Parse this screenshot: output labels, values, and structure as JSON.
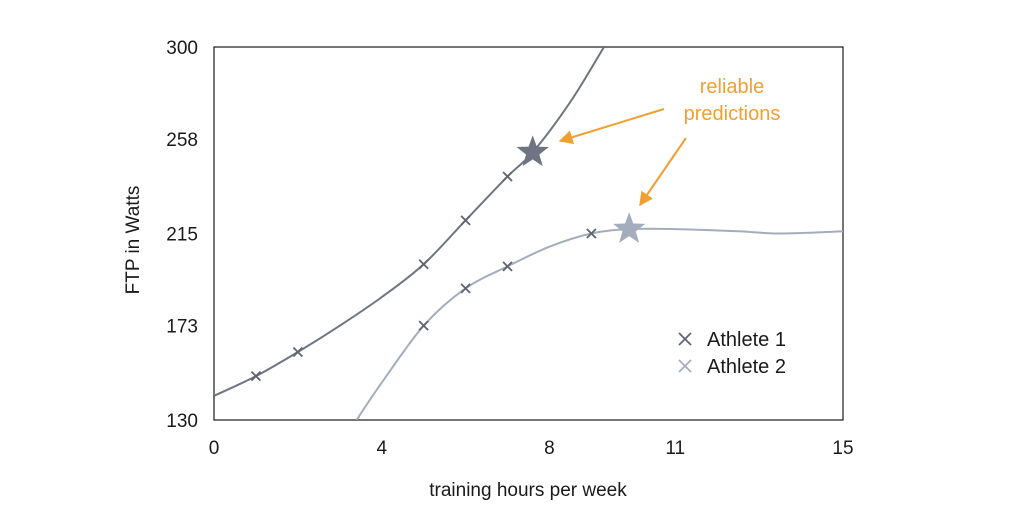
{
  "chart_data": {
    "type": "line",
    "title": "",
    "xlabel": "training hours per week",
    "ylabel": "FTP in Watts",
    "xlim": [
      0,
      15
    ],
    "ylim": [
      130,
      300
    ],
    "x_ticks": [
      0,
      4,
      8,
      11,
      15
    ],
    "x_tick_labels": [
      "0",
      "4",
      "8",
      "11",
      "15"
    ],
    "y_ticks": [
      130,
      173,
      215,
      258,
      300
    ],
    "y_tick_labels": [
      "130",
      "173",
      "215",
      "258",
      "300"
    ],
    "grid": false,
    "legend_position": "lower-right",
    "series": [
      {
        "name": "Athlete 1",
        "color": "#6e7481",
        "marker": "x",
        "points": [
          {
            "x": 1.0,
            "y": 150
          },
          {
            "x": 2.0,
            "y": 161
          },
          {
            "x": 5.0,
            "y": 201
          },
          {
            "x": 6.0,
            "y": 221
          },
          {
            "x": 7.0,
            "y": 241
          }
        ],
        "curve": [
          {
            "x": 0.0,
            "y": 141
          },
          {
            "x": 1.0,
            "y": 150
          },
          {
            "x": 2.0,
            "y": 161
          },
          {
            "x": 3.0,
            "y": 173
          },
          {
            "x": 4.0,
            "y": 186
          },
          {
            "x": 5.0,
            "y": 201
          },
          {
            "x": 6.0,
            "y": 221
          },
          {
            "x": 7.0,
            "y": 241
          },
          {
            "x": 7.6,
            "y": 252
          },
          {
            "x": 8.5,
            "y": 275
          },
          {
            "x": 9.3,
            "y": 300
          }
        ],
        "prediction": {
          "x": 7.6,
          "y": 252
        }
      },
      {
        "name": "Athlete 2",
        "color": "#a4adbb",
        "marker": "x",
        "points": [
          {
            "x": 5.0,
            "y": 173
          },
          {
            "x": 6.0,
            "y": 190
          },
          {
            "x": 7.0,
            "y": 200
          },
          {
            "x": 9.0,
            "y": 215
          }
        ],
        "curve": [
          {
            "x": 3.4,
            "y": 130
          },
          {
            "x": 4.0,
            "y": 147
          },
          {
            "x": 5.0,
            "y": 173
          },
          {
            "x": 6.0,
            "y": 190
          },
          {
            "x": 7.0,
            "y": 200
          },
          {
            "x": 8.0,
            "y": 209
          },
          {
            "x": 9.0,
            "y": 215
          },
          {
            "x": 9.9,
            "y": 217
          },
          {
            "x": 11.0,
            "y": 217
          },
          {
            "x": 12.5,
            "y": 216
          },
          {
            "x": 13.5,
            "y": 215
          },
          {
            "x": 15.0,
            "y": 216
          }
        ],
        "prediction": {
          "x": 9.9,
          "y": 217
        }
      }
    ],
    "annotations": [
      {
        "text_lines": [
          "reliable",
          "predictions"
        ],
        "color": "#f0a030"
      }
    ]
  }
}
